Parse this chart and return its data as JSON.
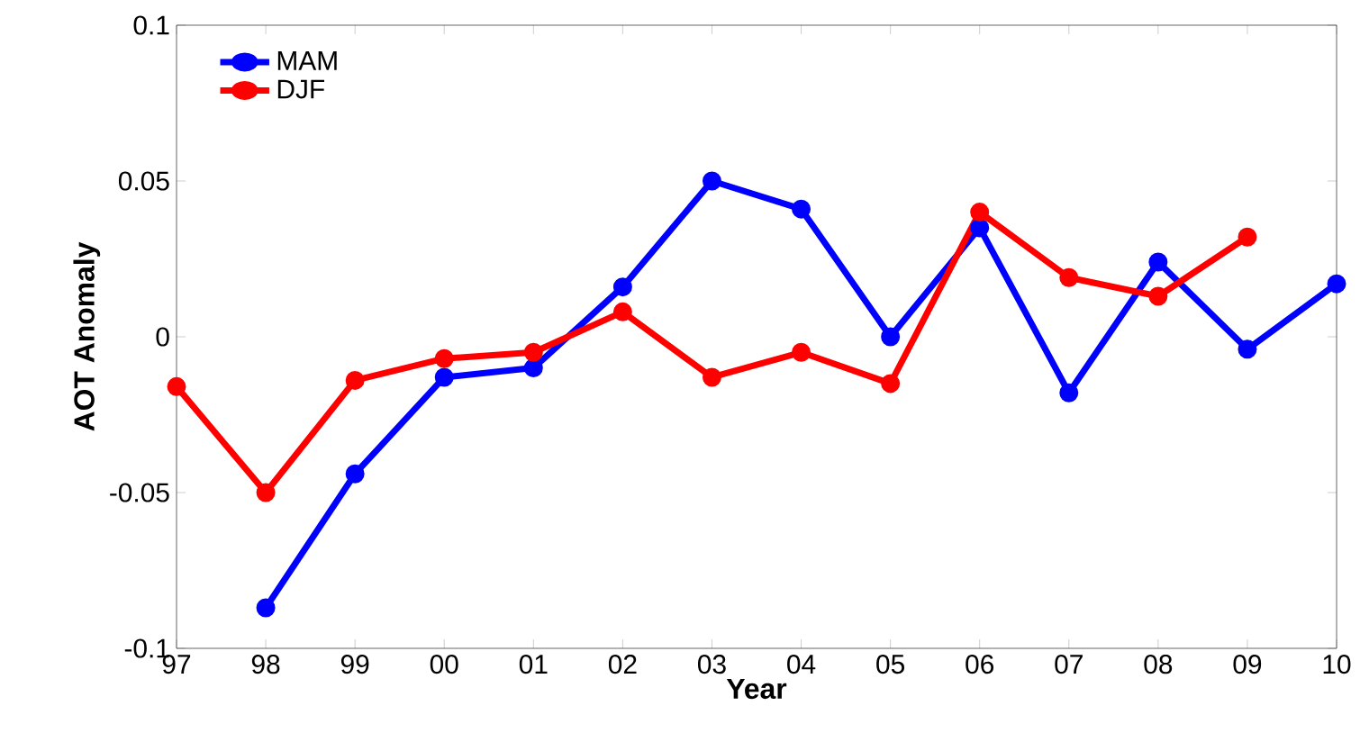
{
  "chart_data": {
    "type": "line",
    "xlabel": "Year",
    "ylabel": "AOT Anomaly",
    "categories": [
      "97",
      "98",
      "99",
      "00",
      "01",
      "02",
      "03",
      "04",
      "05",
      "06",
      "07",
      "08",
      "09",
      "10"
    ],
    "series": [
      {
        "name": "MAM",
        "color": "#0000ff",
        "values": [
          null,
          -0.087,
          -0.044,
          -0.013,
          -0.01,
          0.016,
          0.05,
          0.041,
          0.0,
          0.035,
          -0.018,
          0.024,
          -0.004,
          0.017
        ]
      },
      {
        "name": "DJF",
        "color": "#ff0000",
        "values": [
          -0.016,
          -0.05,
          -0.014,
          -0.007,
          -0.005,
          0.008,
          -0.013,
          -0.005,
          -0.015,
          0.04,
          0.019,
          0.013,
          0.032,
          null
        ]
      }
    ],
    "ylim": [
      -0.1,
      0.1
    ],
    "yticks": [
      -0.1,
      -0.05,
      0,
      0.05,
      0.1
    ],
    "legend": "top left",
    "marker": "circle",
    "line_style": "solid",
    "grid": false
  }
}
